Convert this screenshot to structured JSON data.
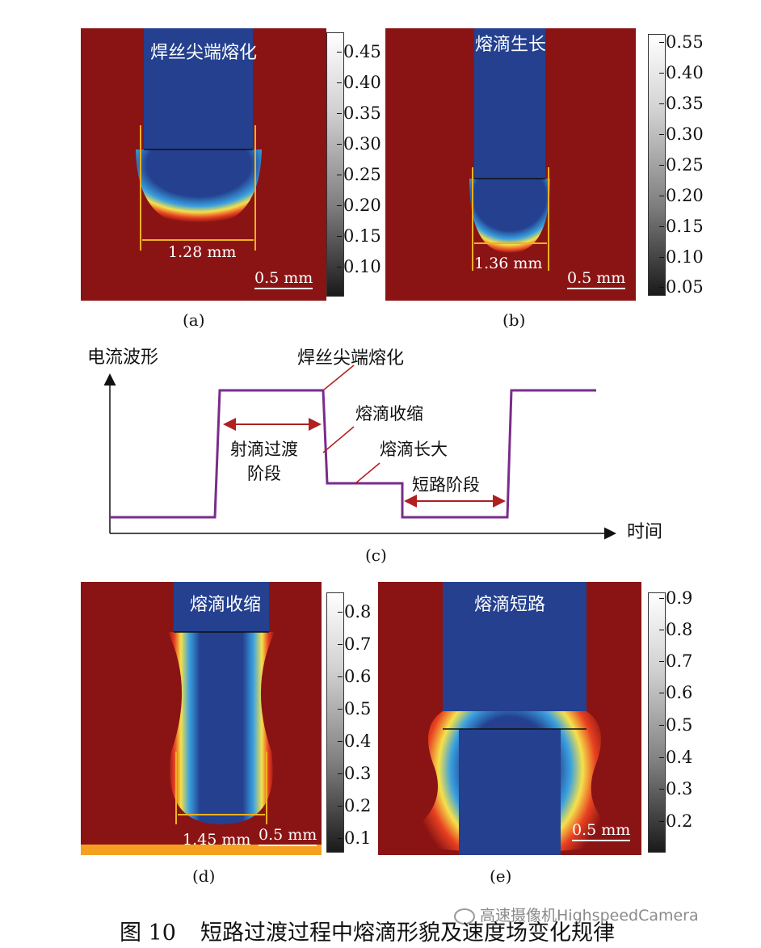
{
  "panels": {
    "a": {
      "title": "焊丝尖端熔化",
      "measure": "1.28 mm",
      "scale": "0.5 mm",
      "label": "(a)",
      "ticks": [
        "0.45",
        "0.40",
        "0.35",
        "0.30",
        "0.25",
        "0.20",
        "0.15",
        "0.10"
      ]
    },
    "b": {
      "title": "熔滴生长",
      "measure": "1.36 mm",
      "scale": "0.5 mm",
      "label": "(b)",
      "ticks": [
        "0.55",
        "0.40",
        "0.35",
        "0.30",
        "0.25",
        "0.20",
        "0.15",
        "0.10",
        "0.05"
      ]
    },
    "d": {
      "title": "熔滴收缩",
      "measure": "1.45 mm",
      "scale": "0.5 mm",
      "label": "(d)",
      "ticks": [
        "0.8",
        "0.7",
        "0.6",
        "0.5",
        "0.4",
        "0.3",
        "0.2",
        "0.1"
      ]
    },
    "e": {
      "title": "熔滴短路",
      "scale": "0.5 mm",
      "label": "(e)",
      "ticks": [
        "0.9",
        "0.8",
        "0.7",
        "0.6",
        "0.5",
        "0.4",
        "0.3",
        "0.2"
      ]
    }
  },
  "waveform": {
    "ylabel": "电流波形",
    "xlabel": "时间",
    "label": "(c)",
    "annotations": {
      "tip_melt": "焊丝尖端熔化",
      "shrink": "熔滴收缩",
      "grow": "熔滴长大",
      "spray_1": "射滴过渡",
      "spray_2": "阶段",
      "short": "短路阶段"
    }
  },
  "watermark": "高速摄像机HighspeedCamera",
  "caption": {
    "number": "图 10",
    "text": "短路过渡过程中熔滴形貌及速度场变化规律"
  },
  "colors": {
    "field_red": "#8a1414",
    "wire_blue": "#24408f",
    "wave_purple": "#7a2c8c",
    "arrow_red": "#b02020",
    "dim_yellow": "#f0b020"
  }
}
